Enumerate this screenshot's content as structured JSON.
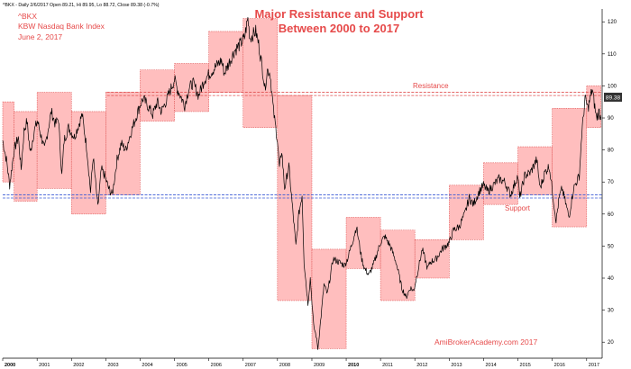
{
  "header": {
    "info": "^BKX - Daily 2/6/2017 Open 89.21, Hi 89.95, Lo 88.72, Close 89.38 (-0.7%)"
  },
  "title": {
    "line1": "Major Resistance and Support",
    "line2": "Between 2000 to 2017"
  },
  "info_box": {
    "symbol": "^BKX",
    "name": "KBW Nasdaq Bank Index",
    "date": "June 2, 2017"
  },
  "annotations": {
    "resistance": "Resistance",
    "support": "Support",
    "watermark": "AmiBrokerAcademy.com  2017"
  },
  "last_price_label": "89.38",
  "colors": {
    "price_line": "#000000",
    "box_fill": "#ffb3b3",
    "box_stroke": "#e05a5a",
    "resistance_line": "#e05050",
    "support_line": "#3b5bd6",
    "title_text": "#e64a4a",
    "price_tag": "#333333"
  },
  "chart_data": {
    "type": "line",
    "x_start": "2000-01-01",
    "x_end": "2017-06-15",
    "ylim": [
      15,
      124
    ],
    "y_ticks": [
      20,
      30,
      40,
      50,
      60,
      70,
      80,
      90,
      100,
      110,
      120
    ],
    "x_tick_labels": [
      "2000",
      "2001",
      "2002",
      "2003",
      "2004",
      "2005",
      "2006",
      "2007",
      "2008",
      "2009",
      "2010",
      "2011",
      "2012",
      "2013",
      "2014",
      "2015",
      "2016",
      "2017"
    ],
    "bold_x_ticks": [
      "2000",
      "2010"
    ],
    "grid": false,
    "series": [
      {
        "values": [
          [
            "2000-01-01",
            83
          ],
          [
            "2000-02-15",
            76
          ],
          [
            "2000-03-15",
            69
          ],
          [
            "2000-05-01",
            80
          ],
          [
            "2000-06-15",
            84
          ],
          [
            "2000-07-15",
            74
          ],
          [
            "2000-08-15",
            86
          ],
          [
            "2000-09-15",
            89
          ],
          [
            "2000-10-20",
            79
          ],
          [
            "2000-12-01",
            86
          ],
          [
            "2001-01-05",
            89
          ],
          [
            "2001-02-15",
            84
          ],
          [
            "2001-03-20",
            80
          ],
          [
            "2001-05-01",
            87
          ],
          [
            "2001-06-01",
            92
          ],
          [
            "2001-07-15",
            88
          ],
          [
            "2001-08-15",
            90
          ],
          [
            "2001-09-21",
            72
          ],
          [
            "2001-10-15",
            83
          ],
          [
            "2001-12-01",
            87
          ],
          [
            "2002-02-01",
            84
          ],
          [
            "2002-03-20",
            88
          ],
          [
            "2002-04-25",
            91
          ],
          [
            "2002-06-15",
            80
          ],
          [
            "2002-07-23",
            67
          ],
          [
            "2002-08-20",
            78
          ],
          [
            "2002-10-09",
            62
          ],
          [
            "2002-11-15",
            74
          ],
          [
            "2002-12-20",
            72
          ],
          [
            "2003-02-01",
            68
          ],
          [
            "2003-03-12",
            66
          ],
          [
            "2003-05-01",
            77
          ],
          [
            "2003-06-15",
            82
          ],
          [
            "2003-08-01",
            80
          ],
          [
            "2003-10-01",
            86
          ],
          [
            "2003-12-31",
            94
          ],
          [
            "2004-02-01",
            96
          ],
          [
            "2004-03-20",
            94
          ],
          [
            "2004-05-15",
            91
          ],
          [
            "2004-07-01",
            95
          ],
          [
            "2004-08-15",
            92
          ],
          [
            "2004-10-15",
            96
          ],
          [
            "2004-12-31",
            102
          ],
          [
            "2005-02-01",
            99
          ],
          [
            "2005-04-20",
            94
          ],
          [
            "2005-06-01",
            99
          ],
          [
            "2005-07-15",
            101
          ],
          [
            "2005-09-15",
            97
          ],
          [
            "2005-11-15",
            102
          ],
          [
            "2006-01-15",
            104
          ],
          [
            "2006-03-15",
            106
          ],
          [
            "2006-05-15",
            108
          ],
          [
            "2006-06-15",
            104
          ],
          [
            "2006-08-01",
            107
          ],
          [
            "2006-10-01",
            111
          ],
          [
            "2006-12-01",
            113
          ],
          [
            "2007-01-15",
            115
          ],
          [
            "2007-02-20",
            121
          ],
          [
            "2007-03-15",
            115
          ],
          [
            "2007-05-15",
            117
          ],
          [
            "2007-06-15",
            113
          ],
          [
            "2007-08-01",
            104
          ],
          [
            "2007-08-20",
            99
          ],
          [
            "2007-09-15",
            105
          ],
          [
            "2007-10-15",
            104
          ],
          [
            "2007-11-20",
            92
          ],
          [
            "2008-01-01",
            83
          ],
          [
            "2008-01-22",
            74
          ],
          [
            "2008-02-15",
            80
          ],
          [
            "2008-03-17",
            68
          ],
          [
            "2008-05-01",
            75
          ],
          [
            "2008-06-15",
            60
          ],
          [
            "2008-07-15",
            50
          ],
          [
            "2008-08-15",
            60
          ],
          [
            "2008-09-19",
            66
          ],
          [
            "2008-10-10",
            45
          ],
          [
            "2008-11-20",
            32
          ],
          [
            "2008-12-15",
            40
          ],
          [
            "2009-01-20",
            25
          ],
          [
            "2009-02-15",
            22
          ],
          [
            "2009-03-06",
            18
          ],
          [
            "2009-04-15",
            30
          ],
          [
            "2009-05-10",
            38
          ],
          [
            "2009-06-15",
            35
          ],
          [
            "2009-08-15",
            46
          ],
          [
            "2009-10-15",
            45
          ],
          [
            "2009-12-15",
            44
          ],
          [
            "2010-01-15",
            46
          ],
          [
            "2010-03-15",
            52
          ],
          [
            "2010-04-20",
            56
          ],
          [
            "2010-06-15",
            46
          ],
          [
            "2010-07-15",
            43
          ],
          [
            "2010-08-30",
            41
          ],
          [
            "2010-10-15",
            44
          ],
          [
            "2010-12-31",
            51
          ],
          [
            "2011-02-15",
            53
          ],
          [
            "2011-04-15",
            50
          ],
          [
            "2011-06-15",
            45
          ],
          [
            "2011-08-15",
            37
          ],
          [
            "2011-10-01",
            34
          ],
          [
            "2011-11-15",
            37
          ],
          [
            "2011-12-20",
            36
          ],
          [
            "2012-01-31",
            42
          ],
          [
            "2012-03-20",
            49
          ],
          [
            "2012-05-15",
            43
          ],
          [
            "2012-06-15",
            45
          ],
          [
            "2012-08-15",
            46
          ],
          [
            "2012-10-15",
            49
          ],
          [
            "2012-12-31",
            51
          ],
          [
            "2013-02-15",
            55
          ],
          [
            "2013-04-15",
            56
          ],
          [
            "2013-06-15",
            60
          ],
          [
            "2013-08-01",
            65
          ],
          [
            "2013-09-15",
            63
          ],
          [
            "2013-11-15",
            67
          ],
          [
            "2013-12-31",
            69
          ],
          [
            "2014-02-15",
            67
          ],
          [
            "2014-04-15",
            69
          ],
          [
            "2014-06-15",
            71
          ],
          [
            "2014-08-15",
            70
          ],
          [
            "2014-10-15",
            66
          ],
          [
            "2014-12-31",
            72
          ],
          [
            "2015-01-20",
            65
          ],
          [
            "2015-03-15",
            72
          ],
          [
            "2015-05-15",
            73
          ],
          [
            "2015-07-20",
            77
          ],
          [
            "2015-08-25",
            68
          ],
          [
            "2015-10-15",
            73
          ],
          [
            "2015-12-01",
            75
          ],
          [
            "2016-01-20",
            63
          ],
          [
            "2016-02-11",
            58
          ],
          [
            "2016-03-15",
            65
          ],
          [
            "2016-04-15",
            68
          ],
          [
            "2016-06-27",
            59
          ],
          [
            "2016-08-15",
            68
          ],
          [
            "2016-10-15",
            72
          ],
          [
            "2016-11-10",
            85
          ],
          [
            "2016-12-15",
            96
          ],
          [
            "2017-01-15",
            93
          ],
          [
            "2017-03-01",
            99
          ],
          [
            "2017-04-15",
            90
          ],
          [
            "2017-05-15",
            92
          ],
          [
            "2017-06-02",
            89.38
          ]
        ]
      }
    ],
    "boxes": [
      {
        "x0": "2000-01-01",
        "x1": "2000-05-01",
        "y0": 70,
        "y1": 95
      },
      {
        "x0": "2000-05-01",
        "x1": "2001-01-01",
        "y0": 64,
        "y1": 92
      },
      {
        "x0": "2001-01-01",
        "x1": "2002-01-01",
        "y0": 68,
        "y1": 98
      },
      {
        "x0": "2002-01-01",
        "x1": "2003-01-01",
        "y0": 60,
        "y1": 92
      },
      {
        "x0": "2003-01-01",
        "x1": "2004-01-01",
        "y0": 66,
        "y1": 98
      },
      {
        "x0": "2004-01-01",
        "x1": "2005-01-01",
        "y0": 89,
        "y1": 105
      },
      {
        "x0": "2005-01-01",
        "x1": "2006-01-01",
        "y0": 92,
        "y1": 107
      },
      {
        "x0": "2006-01-01",
        "x1": "2007-01-01",
        "y0": 98,
        "y1": 117
      },
      {
        "x0": "2007-01-01",
        "x1": "2008-01-01",
        "y0": 87,
        "y1": 121
      },
      {
        "x0": "2008-01-01",
        "x1": "2009-01-01",
        "y0": 33,
        "y1": 97
      },
      {
        "x0": "2009-01-01",
        "x1": "2010-01-01",
        "y0": 18,
        "y1": 49
      },
      {
        "x0": "2010-01-01",
        "x1": "2011-01-01",
        "y0": 43,
        "y1": 59
      },
      {
        "x0": "2011-01-01",
        "x1": "2012-01-01",
        "y0": 33,
        "y1": 55
      },
      {
        "x0": "2012-01-01",
        "x1": "2013-01-01",
        "y0": 40,
        "y1": 52
      },
      {
        "x0": "2013-01-01",
        "x1": "2014-01-01",
        "y0": 52,
        "y1": 69
      },
      {
        "x0": "2014-01-01",
        "x1": "2015-01-01",
        "y0": 63,
        "y1": 76
      },
      {
        "x0": "2015-01-01",
        "x1": "2016-01-01",
        "y0": 66,
        "y1": 81
      },
      {
        "x0": "2016-01-01",
        "x1": "2017-01-01",
        "y0": 56,
        "y1": 93
      },
      {
        "x0": "2017-01-01",
        "x1": "2017-06-02",
        "y0": 87,
        "y1": 100
      }
    ],
    "resistance_levels": [
      97,
      98
    ],
    "support_levels": [
      65,
      66
    ]
  }
}
